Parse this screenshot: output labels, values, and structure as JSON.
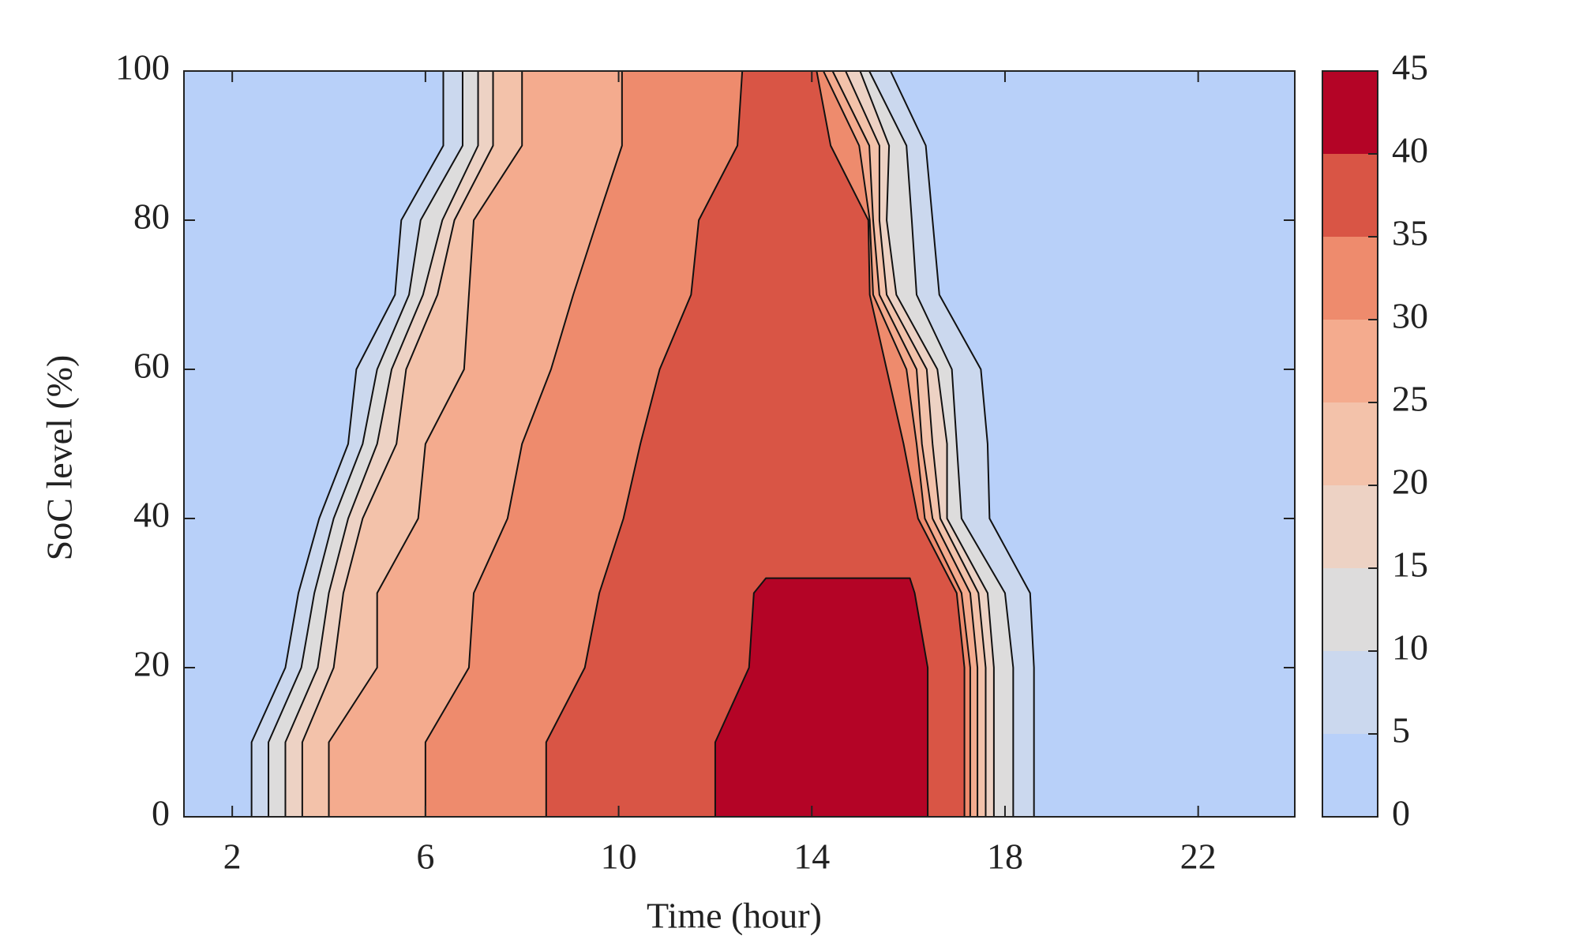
{
  "chart_data": {
    "type": "contourf",
    "xlabel": "Time (hour)",
    "ylabel": "SoC level (%)",
    "xlim": [
      1,
      24
    ],
    "xticks": [
      2,
      6,
      10,
      14,
      18,
      22
    ],
    "ylim": [
      0,
      100
    ],
    "yticks": [
      0,
      20,
      40,
      60,
      80,
      100
    ],
    "colorbar": {
      "lim": [
        0,
        45
      ],
      "ticks": [
        0,
        5,
        10,
        15,
        20,
        25,
        30,
        35,
        40,
        45
      ],
      "colors": [
        "#b8d0f9",
        "#cbd8ee",
        "#dddcdc",
        "#edd2c4",
        "#f3c2aa",
        "#f4ab8e",
        "#ee8b6d",
        "#d95545",
        "#b40426"
      ]
    },
    "contours": [
      {
        "level": 5,
        "y": [
          0,
          10,
          20,
          30,
          40,
          50,
          60,
          70,
          80,
          90,
          100
        ],
        "left": [
          2.4,
          2.4,
          3.1,
          3.37,
          3.8,
          4.4,
          4.57,
          5.37,
          5.5,
          6.37,
          6.37
        ],
        "right": [
          18.6,
          18.6,
          18.6,
          18.52,
          17.68,
          17.64,
          17.5,
          16.64,
          16.5,
          16.36,
          15.63
        ]
      },
      {
        "level": 10,
        "y": [
          0,
          10,
          20,
          30,
          40,
          50,
          60,
          70,
          80,
          90,
          100
        ],
        "left": [
          2.75,
          2.75,
          3.43,
          3.7,
          4.1,
          4.7,
          5.0,
          5.66,
          5.9,
          6.77,
          6.77
        ],
        "right": [
          18.17,
          18.17,
          18.17,
          18.0,
          17.1,
          17.0,
          16.9,
          16.17,
          16.07,
          15.96,
          15.19
        ]
      },
      {
        "level": 15,
        "y": [
          0,
          10,
          20,
          30,
          40,
          50,
          60,
          70,
          80,
          90,
          100
        ],
        "left": [
          3.1,
          3.1,
          3.77,
          4.0,
          4.4,
          5.0,
          5.3,
          5.95,
          6.35,
          7.09,
          7.09
        ],
        "right": [
          17.77,
          17.77,
          17.77,
          17.64,
          16.8,
          16.8,
          16.6,
          15.75,
          15.55,
          15.6,
          15.0
        ]
      },
      {
        "level": 20,
        "y": [
          0,
          10,
          20,
          30,
          40,
          50,
          60,
          70,
          80,
          90,
          100
        ],
        "left": [
          3.45,
          3.45,
          4.1,
          4.3,
          4.7,
          5.4,
          5.6,
          6.25,
          6.6,
          7.4,
          7.4
        ],
        "right": [
          17.6,
          17.6,
          17.6,
          17.45,
          16.66,
          16.5,
          16.38,
          15.55,
          15.4,
          15.4,
          14.7
        ]
      },
      {
        "level": 25,
        "y": [
          0,
          10,
          20,
          30,
          40,
          50,
          60,
          70,
          80,
          90,
          100
        ],
        "left": [
          4.0,
          4.0,
          5.0,
          5.0,
          5.85,
          6.0,
          6.8,
          6.9,
          7.0,
          8.0,
          8.0
        ],
        "right": [
          17.43,
          17.43,
          17.43,
          17.28,
          16.5,
          16.28,
          16.17,
          15.4,
          15.27,
          15.19,
          14.43
        ]
      },
      {
        "level": 30,
        "y": [
          0,
          10,
          20,
          30,
          40,
          50,
          60,
          70,
          80,
          90,
          100
        ],
        "left": [
          6.0,
          6.0,
          6.9,
          7.0,
          7.7,
          8.0,
          8.6,
          9.06,
          9.56,
          10.07,
          10.07
        ],
        "right": [
          17.28,
          17.28,
          17.28,
          17.1,
          16.34,
          16.17,
          15.96,
          15.27,
          15.2,
          14.98,
          14.24
        ]
      },
      {
        "level": 35,
        "y": [
          0,
          10,
          20,
          30,
          40,
          50,
          60,
          70,
          80,
          90,
          100
        ],
        "left": [
          8.5,
          8.5,
          9.3,
          9.6,
          10.1,
          10.45,
          10.85,
          11.5,
          11.66,
          12.46,
          12.56
        ],
        "right": [
          17.16,
          17.16,
          17.16,
          17.0,
          16.2,
          15.9,
          15.55,
          15.2,
          15.17,
          14.39,
          14.1
        ]
      },
      {
        "level": 40,
        "y": [
          0,
          10,
          20,
          30,
          32
        ],
        "left": [
          12.0,
          12.0,
          12.7,
          12.8,
          13.05
        ],
        "right": [
          16.4,
          16.4,
          16.4,
          16.13,
          16.03
        ]
      }
    ]
  }
}
